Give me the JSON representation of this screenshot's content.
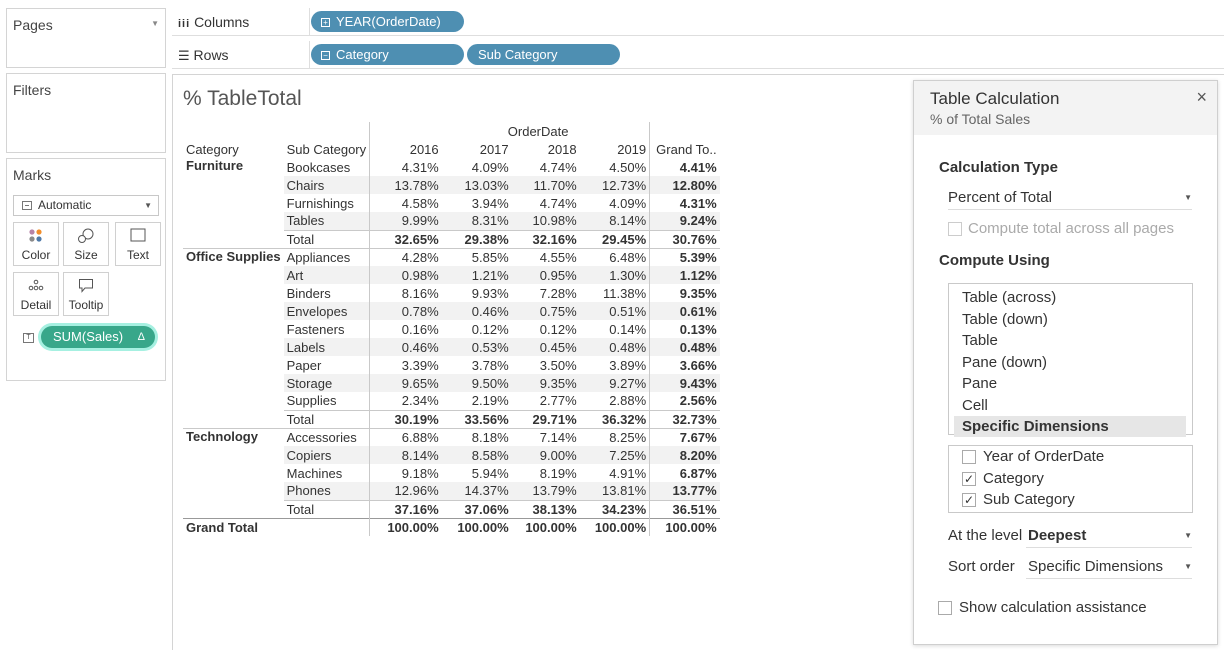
{
  "left_panel": {
    "pages_title": "Pages",
    "filters_title": "Filters",
    "marks_title": "Marks",
    "mark_type": "Automatic",
    "mark_buttons": {
      "color": "Color",
      "size": "Size",
      "text": "Text",
      "detail": "Detail",
      "tooltip": "Tooltip"
    },
    "text_icon_glyph": "T",
    "measure_pill": "SUM(Sales)",
    "measure_pill_badge": "Δ"
  },
  "shelves": {
    "columns_label": "Columns",
    "rows_label": "Rows",
    "columns_pills": [
      "YEAR(OrderDate)"
    ],
    "rows_pills": [
      "Category",
      "Sub Category"
    ]
  },
  "view": {
    "title": "% TableTotal",
    "table": {
      "top_header": "OrderDate",
      "row_headers": [
        "Category",
        "Sub Category"
      ],
      "columns": [
        "2016",
        "2017",
        "2018",
        "2019",
        "Grand To.."
      ],
      "groups": [
        {
          "category": "Furniture",
          "rows": [
            {
              "sub": "Bookcases",
              "values": [
                "4.31%",
                "4.09%",
                "4.74%",
                "4.50%",
                "4.41%"
              ]
            },
            {
              "sub": "Chairs",
              "values": [
                "13.78%",
                "13.03%",
                "11.70%",
                "12.73%",
                "12.80%"
              ]
            },
            {
              "sub": "Furnishings",
              "values": [
                "4.58%",
                "3.94%",
                "4.74%",
                "4.09%",
                "4.31%"
              ]
            },
            {
              "sub": "Tables",
              "values": [
                "9.99%",
                "8.31%",
                "10.98%",
                "8.14%",
                "9.24%"
              ]
            }
          ],
          "total": {
            "label": "Total",
            "values": [
              "32.65%",
              "29.38%",
              "32.16%",
              "29.45%",
              "30.76%"
            ]
          }
        },
        {
          "category": "Office Supplies",
          "rows": [
            {
              "sub": "Appliances",
              "values": [
                "4.28%",
                "5.85%",
                "4.55%",
                "6.48%",
                "5.39%"
              ]
            },
            {
              "sub": "Art",
              "values": [
                "0.98%",
                "1.21%",
                "0.95%",
                "1.30%",
                "1.12%"
              ]
            },
            {
              "sub": "Binders",
              "values": [
                "8.16%",
                "9.93%",
                "7.28%",
                "11.38%",
                "9.35%"
              ]
            },
            {
              "sub": "Envelopes",
              "values": [
                "0.78%",
                "0.46%",
                "0.75%",
                "0.51%",
                "0.61%"
              ]
            },
            {
              "sub": "Fasteners",
              "values": [
                "0.16%",
                "0.12%",
                "0.12%",
                "0.14%",
                "0.13%"
              ]
            },
            {
              "sub": "Labels",
              "values": [
                "0.46%",
                "0.53%",
                "0.45%",
                "0.48%",
                "0.48%"
              ]
            },
            {
              "sub": "Paper",
              "values": [
                "3.39%",
                "3.78%",
                "3.50%",
                "3.89%",
                "3.66%"
              ]
            },
            {
              "sub": "Storage",
              "values": [
                "9.65%",
                "9.50%",
                "9.35%",
                "9.27%",
                "9.43%"
              ]
            },
            {
              "sub": "Supplies",
              "values": [
                "2.34%",
                "2.19%",
                "2.77%",
                "2.88%",
                "2.56%"
              ]
            }
          ],
          "total": {
            "label": "Total",
            "values": [
              "30.19%",
              "33.56%",
              "29.71%",
              "36.32%",
              "32.73%"
            ]
          }
        },
        {
          "category": "Technology",
          "rows": [
            {
              "sub": "Accessories",
              "values": [
                "6.88%",
                "8.18%",
                "7.14%",
                "8.25%",
                "7.67%"
              ]
            },
            {
              "sub": "Copiers",
              "values": [
                "8.14%",
                "8.58%",
                "9.00%",
                "7.25%",
                "8.20%"
              ]
            },
            {
              "sub": "Machines",
              "values": [
                "9.18%",
                "5.94%",
                "8.19%",
                "4.91%",
                "6.87%"
              ]
            },
            {
              "sub": "Phones",
              "values": [
                "12.96%",
                "14.37%",
                "13.79%",
                "13.81%",
                "13.77%"
              ]
            }
          ],
          "total": {
            "label": "Total",
            "values": [
              "37.16%",
              "37.06%",
              "38.13%",
              "34.23%",
              "36.51%"
            ]
          }
        }
      ],
      "grand_total": {
        "label": "Grand Total",
        "values": [
          "100.00%",
          "100.00%",
          "100.00%",
          "100.00%",
          "100.00%"
        ]
      }
    }
  },
  "dialog": {
    "title": "Table Calculation",
    "subtitle": "% of Total Sales",
    "close_glyph": "×",
    "calculation_type_heading": "Calculation Type",
    "calculation_type_value": "Percent of Total",
    "compute_total_label": "Compute total across all pages",
    "compute_using_heading": "Compute Using",
    "compute_using_options": [
      "Table (across)",
      "Table (down)",
      "Table",
      "Pane (down)",
      "Pane",
      "Cell",
      "Specific Dimensions"
    ],
    "compute_using_selected": "Specific Dimensions",
    "dimensions": [
      {
        "label": "Year of OrderDate",
        "checked": false
      },
      {
        "label": "Category",
        "checked": true
      },
      {
        "label": "Sub Category",
        "checked": true
      }
    ],
    "at_level_label": "At the level",
    "at_level_value": "Deepest",
    "sort_order_label": "Sort order",
    "sort_order_value": "Specific Dimensions",
    "assistance_label": "Show calculation assistance",
    "check_glyph": "✓"
  },
  "colors": {
    "pill_blue": "#4e8fb2",
    "pill_green": "#38a78a",
    "pill_highlight": "#a6f0e1"
  }
}
